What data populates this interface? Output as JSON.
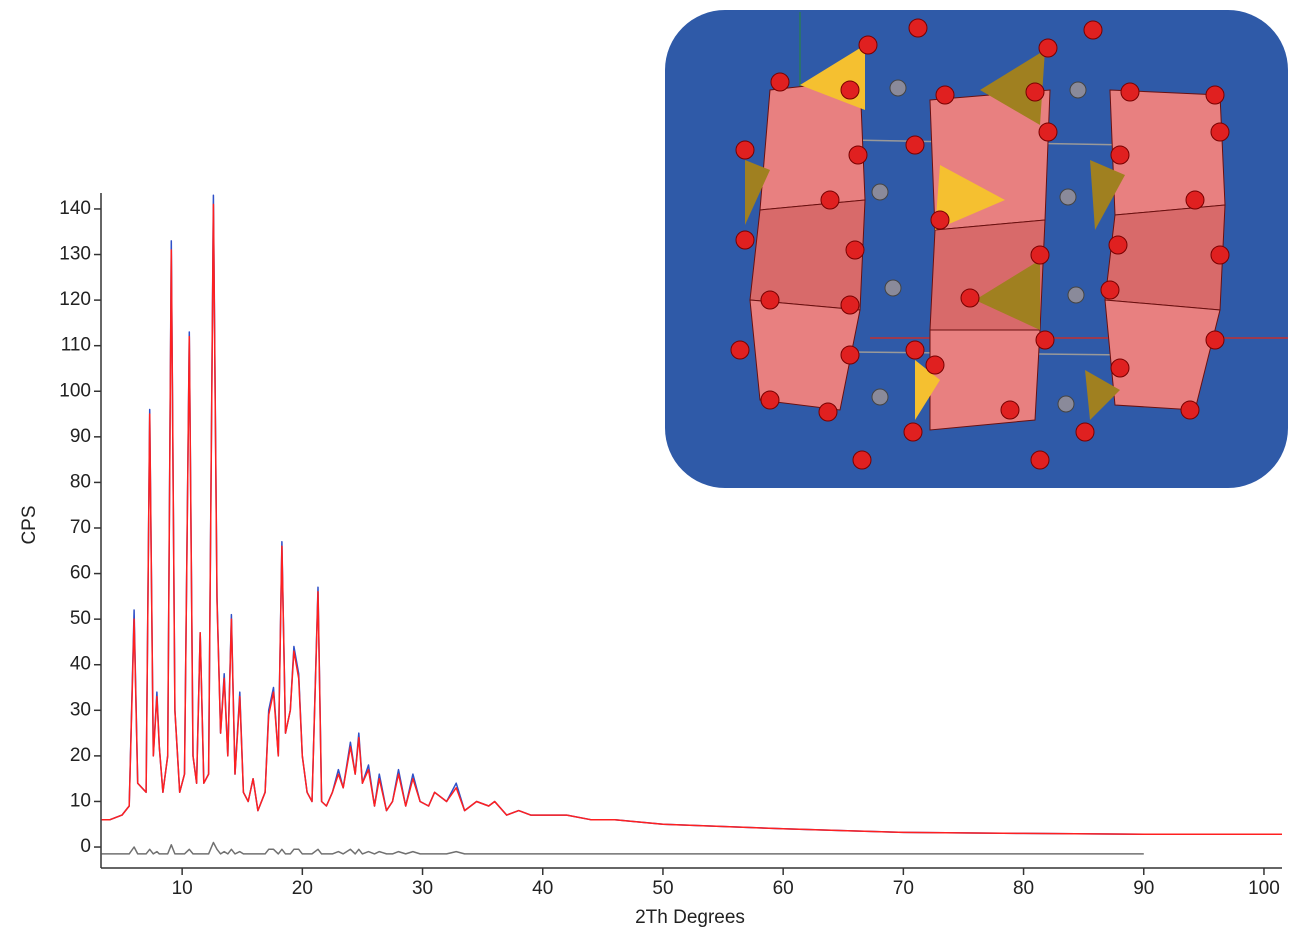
{
  "chart_data": {
    "type": "line",
    "xlabel": "2Th Degrees",
    "ylabel": "CPS",
    "x": [
      3.3,
      4,
      5,
      5.6,
      6,
      6.3,
      7,
      7.3,
      7.6,
      7.9,
      8.1,
      8.4,
      8.8,
      9.1,
      9.4,
      9.8,
      10.2,
      10.6,
      10.9,
      11.2,
      11.5,
      11.8,
      12.2,
      12.6,
      12.9,
      13.2,
      13.5,
      13.8,
      14.1,
      14.4,
      14.8,
      15.1,
      15.5,
      15.9,
      16.3,
      16.9,
      17.2,
      17.6,
      18,
      18.3,
      18.6,
      19,
      19.3,
      19.7,
      20,
      20.4,
      20.8,
      21.3,
      21.6,
      22,
      22.5,
      23,
      23.4,
      24,
      24.4,
      24.7,
      25,
      25.5,
      26,
      26.4,
      27,
      27.5,
      28,
      28.6,
      29.2,
      29.8,
      30.5,
      31,
      32,
      32.8,
      33.5,
      34.5,
      35.5,
      36,
      37,
      38,
      39,
      40,
      42,
      44,
      46,
      48,
      50,
      55,
      60,
      65,
      70,
      80,
      90,
      101.5
    ],
    "series": [
      {
        "color": "#3050c8",
        "values": [
          6,
          6,
          7,
          9,
          52,
          14,
          12,
          96,
          20,
          34,
          22,
          12,
          20,
          133,
          30,
          12,
          16,
          113,
          20,
          14,
          47,
          14,
          16,
          143,
          55,
          25,
          38,
          20,
          51,
          16,
          34,
          12,
          10,
          15,
          8,
          12,
          30,
          35,
          20,
          67,
          25,
          30,
          44,
          38,
          20,
          12,
          10,
          57,
          10,
          9,
          12,
          17,
          13,
          23,
          16,
          25,
          14,
          18,
          9,
          16,
          8,
          10,
          17,
          9,
          16,
          10,
          9,
          12,
          10,
          14,
          8,
          10,
          9,
          10,
          7,
          8,
          7,
          7,
          7,
          6,
          6,
          5.5,
          5,
          4.5,
          4,
          3.6,
          3.2,
          3,
          2.8,
          2.8
        ]
      },
      {
        "color": "#ff2020",
        "values": [
          6,
          6,
          7,
          9,
          50,
          14,
          12,
          95,
          20,
          33,
          22,
          12,
          20,
          131,
          30,
          12,
          16,
          112,
          20,
          14,
          47,
          14,
          16,
          141,
          54,
          25,
          37,
          20,
          50,
          16,
          33,
          12,
          10,
          15,
          8,
          12,
          29,
          34,
          20,
          66,
          25,
          30,
          43,
          37,
          20,
          12,
          10,
          56,
          10,
          9,
          12,
          16,
          13,
          22,
          16,
          24,
          14,
          17,
          9,
          15,
          8,
          10,
          16,
          9,
          15,
          10,
          9,
          12,
          10,
          13,
          8,
          10,
          9,
          10,
          7,
          8,
          7,
          7,
          7,
          6,
          6,
          5.5,
          5,
          4.5,
          4,
          3.6,
          3.2,
          3,
          2.8,
          2.8
        ]
      },
      {
        "color": "#707070",
        "values": [
          -1.5,
          -1.5,
          -1.5,
          -1.5,
          0,
          -1.5,
          -1.5,
          -0.5,
          -1.5,
          -1,
          -1.5,
          -1.5,
          -1.5,
          0.5,
          -1.5,
          -1.5,
          -1.5,
          -0.5,
          -1.5,
          -1.5,
          -1.5,
          -1.5,
          -1.5,
          1,
          -0.5,
          -1.5,
          -1,
          -1.5,
          -0.5,
          -1.5,
          -1,
          -1.5,
          -1.5,
          -1.5,
          -1.5,
          -1.5,
          -0.5,
          -0.5,
          -1.5,
          -0.5,
          -1.5,
          -1.5,
          -0.5,
          -0.5,
          -1.5,
          -1.5,
          -1.5,
          -0.5,
          -1.5,
          -1.5,
          -1.5,
          -1,
          -1.5,
          -0.5,
          -1.5,
          -0.5,
          -1.5,
          -1,
          -1.5,
          -1,
          -1.5,
          -1.5,
          -1,
          -1.5,
          -1,
          -1.5,
          -1.5,
          -1.5,
          -1.5,
          -1,
          -1.5,
          -1.5,
          -1.5,
          -1.5,
          -1.5,
          -1.5,
          -1.5,
          -1.5,
          -1.5,
          -1.5,
          -1.5,
          -1.5,
          -1.5,
          -1.5,
          -1.5,
          -1.5,
          -1.5,
          -1.5,
          -1.5,
          null
        ]
      }
    ],
    "xlim": [
      3.25,
      101.5
    ],
    "ylim": [
      -4.6,
      143.5
    ],
    "xticks": [
      10,
      20,
      30,
      40,
      50,
      60,
      70,
      80,
      90,
      100
    ],
    "yticks": [
      0,
      10,
      20,
      30,
      40,
      50,
      60,
      70,
      80,
      90,
      100,
      110,
      120,
      130,
      140
    ]
  }
}
